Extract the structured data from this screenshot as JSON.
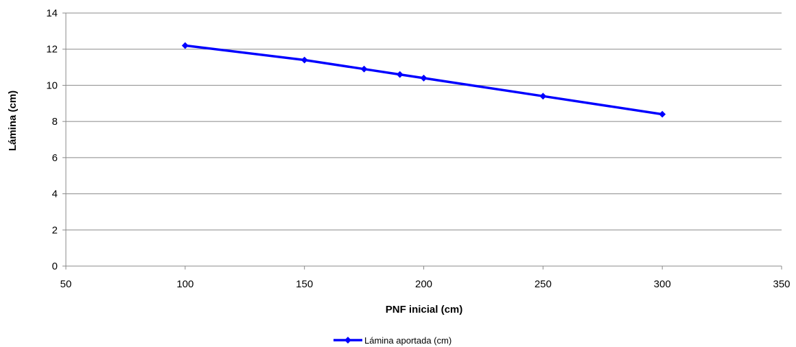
{
  "chart_data": {
    "type": "line",
    "title": "",
    "xlabel": "PNF inicial (cm)",
    "ylabel": "Lámina (cm)",
    "xlim": [
      50,
      350
    ],
    "ylim": [
      0,
      14
    ],
    "x_ticks": [
      "50",
      "100",
      "150",
      "200",
      "250",
      "300",
      "350"
    ],
    "y_ticks": [
      "0",
      "2",
      "4",
      "6",
      "8",
      "10",
      "12",
      "14"
    ],
    "grid": true,
    "legend_position": "bottom",
    "series": [
      {
        "name": "Lámina aportada (cm)",
        "color": "#0000ff",
        "marker": "diamond",
        "x": [
          100,
          150,
          175,
          190,
          200,
          250,
          300
        ],
        "y": [
          12.2,
          11.4,
          10.9,
          10.6,
          10.4,
          9.4,
          8.4
        ]
      }
    ]
  }
}
